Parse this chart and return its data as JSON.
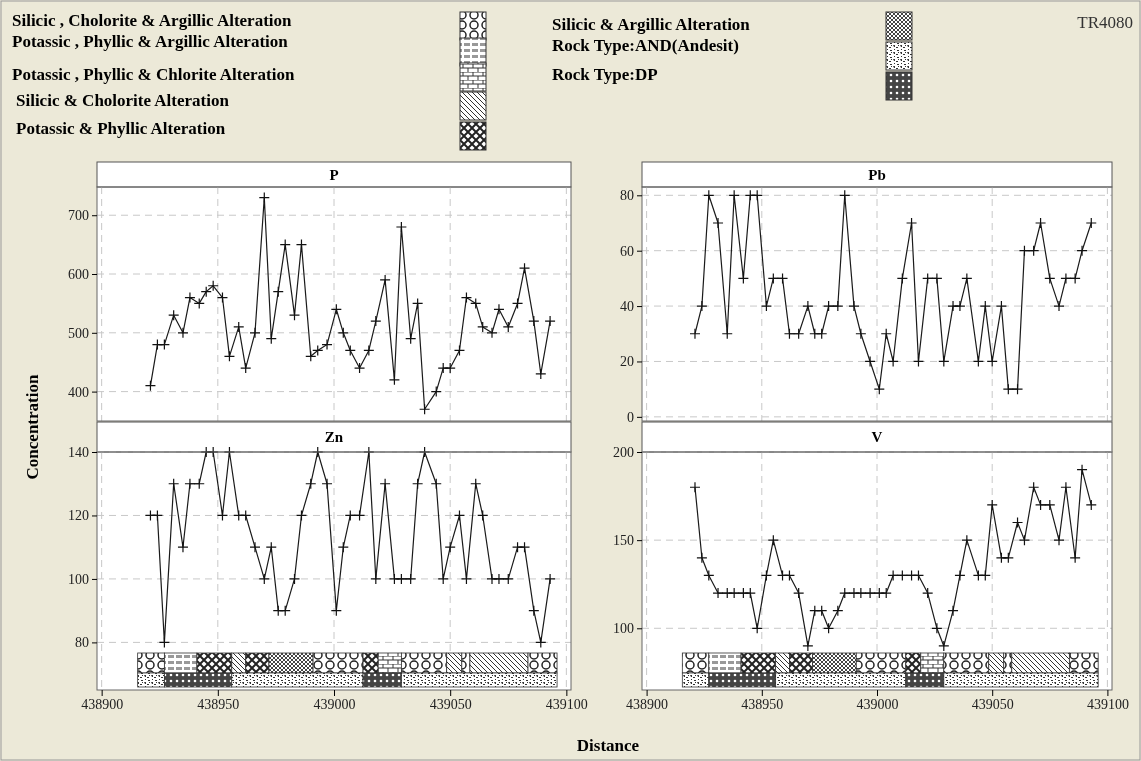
{
  "chart_data": [
    {
      "type": "line",
      "title": "P",
      "ylabel": "Concentration",
      "xlabel": "Distance",
      "annotations": [
        "Silicic , Cholorite & Argillic Alteration",
        "Potassic , Phyllic & Argillic Alteration",
        "Potassic , Phyllic & Chlorite Alteration",
        "Silicic & Cholorite Alteration",
        "Potassic & Phyllic Alteration",
        "Silicic & Argillic Alteration",
        "Rock Type:AND(Andesit)",
        "Rock Type:DP",
        "TR4080"
      ],
      "x": [
        438921,
        438924,
        438927,
        438931,
        438935,
        438938,
        438942,
        438945,
        438948,
        438952,
        438955,
        438959,
        438962,
        438966,
        438970,
        438973,
        438976,
        438979,
        438983,
        438986,
        438990,
        438993,
        438997,
        439001,
        439004,
        439007,
        439011,
        439015,
        439018,
        439022,
        439026,
        439029,
        439033,
        439036,
        439039,
        439044,
        439047,
        439050,
        439054,
        439057,
        439061,
        439064,
        439068,
        439071,
        439075,
        439079,
        439082,
        439086,
        439089,
        439093
      ],
      "values": [
        410,
        480,
        480,
        530,
        500,
        560,
        550,
        570,
        580,
        560,
        460,
        510,
        440,
        500,
        730,
        490,
        570,
        650,
        530,
        650,
        460,
        470,
        480,
        540,
        500,
        470,
        440,
        470,
        520,
        590,
        420,
        680,
        490,
        550,
        370,
        400,
        440,
        440,
        470,
        560,
        550,
        510,
        500,
        540,
        510,
        550,
        610,
        520,
        430,
        520
      ],
      "color": "#1a1a1a",
      "marker": "cross",
      "xlim": [
        438898,
        439102
      ],
      "xticks": [
        438900,
        438950,
        439000,
        439050,
        439100
      ],
      "ylim": [
        350,
        748
      ],
      "yticks": [
        400,
        500,
        600,
        700
      ],
      "grid": true,
      "tick_labels": "y"
    },
    {
      "type": "line",
      "title": "Pb",
      "x": [
        438921,
        438924,
        438927,
        438931,
        438935,
        438938,
        438942,
        438945,
        438948,
        438952,
        438955,
        438959,
        438962,
        438966,
        438970,
        438973,
        438976,
        438979,
        438983,
        438986,
        438990,
        438993,
        438997,
        439001,
        439004,
        439007,
        439011,
        439015,
        439018,
        439022,
        439026,
        439029,
        439033,
        439036,
        439039,
        439044,
        439047,
        439050,
        439054,
        439057,
        439061,
        439064,
        439068,
        439071,
        439075,
        439079,
        439082,
        439086,
        439089,
        439093
      ],
      "values": [
        30,
        40,
        80,
        70,
        30,
        80,
        50,
        80,
        80,
        40,
        50,
        50,
        30,
        30,
        40,
        30,
        30,
        40,
        40,
        80,
        40,
        30,
        20,
        10,
        30,
        20,
        50,
        70,
        20,
        50,
        50,
        20,
        40,
        40,
        50,
        20,
        40,
        20,
        40,
        10,
        10,
        60,
        60,
        70,
        50,
        40,
        50,
        50,
        60,
        70
      ],
      "color": "#1a1a1a",
      "marker": "cross",
      "xlim": [
        438898,
        439102
      ],
      "xticks": [
        438900,
        438950,
        439000,
        439050,
        439100
      ],
      "ylim": [
        -1.5,
        83
      ],
      "yticks": [
        0,
        20,
        40,
        60,
        80
      ],
      "grid": true,
      "tick_labels": "y"
    },
    {
      "type": "line",
      "title": "Zn",
      "x": [
        438921,
        438924,
        438927,
        438931,
        438935,
        438938,
        438942,
        438945,
        438948,
        438952,
        438955,
        438959,
        438962,
        438966,
        438970,
        438973,
        438976,
        438979,
        438983,
        438986,
        438990,
        438993,
        438997,
        439001,
        439004,
        439007,
        439011,
        439015,
        439018,
        439022,
        439026,
        439029,
        439033,
        439036,
        439039,
        439044,
        439047,
        439050,
        439054,
        439057,
        439061,
        439064,
        439068,
        439071,
        439075,
        439079,
        439082,
        439086,
        439089,
        439093
      ],
      "values": [
        120,
        120,
        80,
        130,
        110,
        130,
        130,
        140,
        140,
        120,
        140,
        120,
        120,
        110,
        100,
        110,
        90,
        90,
        100,
        120,
        130,
        140,
        130,
        90,
        110,
        120,
        120,
        140,
        100,
        130,
        100,
        100,
        100,
        130,
        140,
        130,
        100,
        110,
        120,
        100,
        130,
        120,
        100,
        100,
        100,
        110,
        110,
        90,
        80,
        100
      ],
      "color": "#1a1a1a",
      "marker": "cross",
      "xlim": [
        438898,
        439102
      ],
      "xticks": [
        438900,
        438950,
        439000,
        439050,
        439100
      ],
      "ylim": [
        65,
        140
      ],
      "yticks": [
        80,
        100,
        120,
        140
      ],
      "grid": true
    },
    {
      "type": "line",
      "title": "V",
      "x": [
        438921,
        438924,
        438927,
        438931,
        438935,
        438938,
        438942,
        438945,
        438948,
        438952,
        438955,
        438959,
        438962,
        438966,
        438970,
        438973,
        438976,
        438979,
        438983,
        438986,
        438990,
        438993,
        438997,
        439001,
        439004,
        439007,
        439011,
        439015,
        439018,
        439022,
        439026,
        439029,
        439033,
        439036,
        439039,
        439044,
        439047,
        439050,
        439054,
        439057,
        439061,
        439064,
        439068,
        439071,
        439075,
        439079,
        439082,
        439086,
        439089,
        439093
      ],
      "values": [
        180,
        140,
        130,
        120,
        120,
        120,
        120,
        120,
        100,
        130,
        150,
        130,
        130,
        120,
        90,
        110,
        110,
        100,
        110,
        120,
        120,
        120,
        120,
        120,
        120,
        130,
        130,
        130,
        130,
        120,
        100,
        90,
        110,
        130,
        150,
        130,
        130,
        170,
        140,
        140,
        160,
        150,
        180,
        170,
        170,
        150,
        180,
        140,
        190,
        170
      ],
      "color": "#1a1a1a",
      "marker": "cross",
      "xlim": [
        438898,
        439102
      ],
      "xticks": [
        438900,
        438950,
        439000,
        439050,
        439100
      ],
      "ylim": [
        65,
        200
      ],
      "yticks": [
        100,
        150,
        200
      ],
      "grid": true
    }
  ]
}
